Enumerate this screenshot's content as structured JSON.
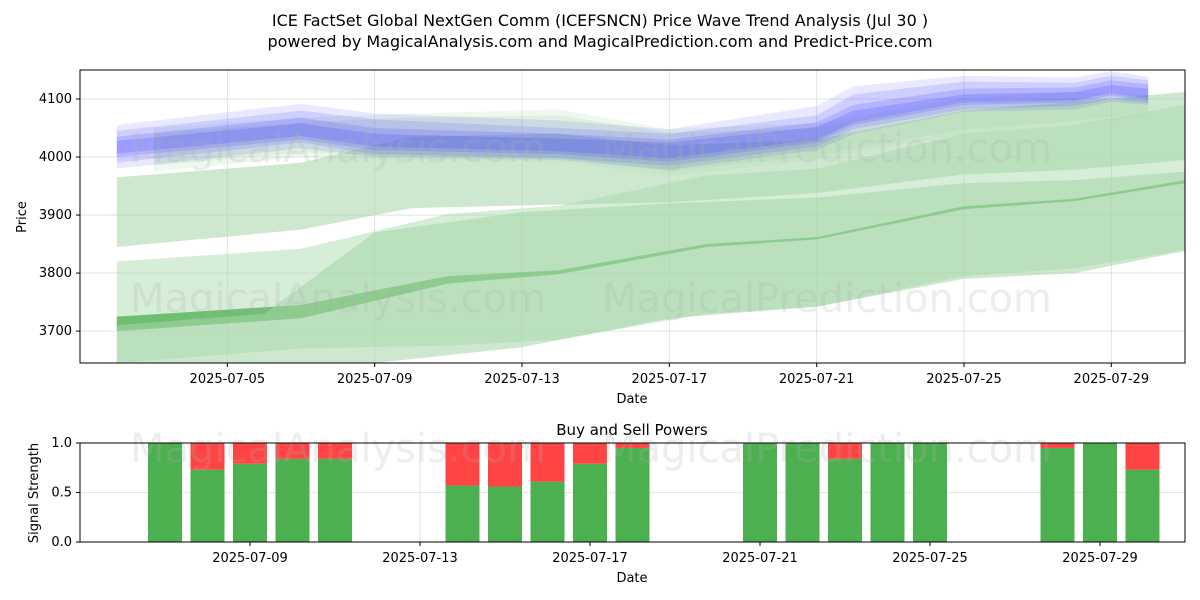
{
  "title": {
    "line1": "ICE FactSet Global NextGen Comm (ICEFSNCN) Price Wave Trend Analysis (Jul 30 )",
    "line2": "powered by MagicalAnalysis.com and MagicalPrediction.com and Predict-Price.com"
  },
  "watermark": {
    "left": "MagicalAnalysis.com",
    "right": "MagicalPrediction.com"
  },
  "colors": {
    "green": "#4caf50",
    "red": "#ff4444",
    "blue": "#4040ff",
    "light_green": "#a5d6a7"
  },
  "chart_data": [
    {
      "type": "area",
      "title": "",
      "xlabel": "Date",
      "ylabel": "Price",
      "xlim": [
        "2025-07-01",
        "2025-07-31"
      ],
      "ylim": [
        3645,
        4150
      ],
      "xticks": [
        "2025-07-05",
        "2025-07-09",
        "2025-07-13",
        "2025-07-17",
        "2025-07-21",
        "2025-07-25",
        "2025-07-29"
      ],
      "yticks": [
        3700,
        3800,
        3900,
        4000,
        4100
      ],
      "grid": true,
      "blue_bands": [
        {
          "x": [
            "2025-07-02",
            "2025-07-07",
            "2025-07-09",
            "2025-07-14",
            "2025-07-17",
            "2025-07-21",
            "2025-07-22",
            "2025-07-25",
            "2025-07-28",
            "2025-07-29",
            "2025-07-30"
          ],
          "upper": [
            4055,
            4092,
            4075,
            4063,
            4048,
            4088,
            4122,
            4140,
            4137,
            4148,
            4138
          ],
          "lower": [
            3980,
            4015,
            4000,
            3995,
            3978,
            4012,
            4040,
            4078,
            4082,
            4095,
            4090
          ]
        },
        {
          "x": [
            "2025-07-02",
            "2025-07-07",
            "2025-07-09",
            "2025-07-14",
            "2025-07-17",
            "2025-07-21",
            "2025-07-22",
            "2025-07-25",
            "2025-07-28",
            "2025-07-29",
            "2025-07-30"
          ],
          "upper": [
            4045,
            4080,
            4065,
            4050,
            4040,
            4072,
            4108,
            4130,
            4128,
            4140,
            4132
          ],
          "lower": [
            3990,
            4025,
            4005,
            3998,
            3985,
            4018,
            4048,
            4082,
            4088,
            4100,
            4093
          ]
        },
        {
          "x": [
            "2025-07-02",
            "2025-07-07",
            "2025-07-09",
            "2025-07-14",
            "2025-07-17",
            "2025-07-21",
            "2025-07-22",
            "2025-07-25",
            "2025-07-28",
            "2025-07-29",
            "2025-07-30"
          ],
          "upper": [
            4035,
            4068,
            4050,
            4040,
            4030,
            4060,
            4090,
            4118,
            4120,
            4132,
            4125
          ],
          "lower": [
            4000,
            4030,
            4012,
            4005,
            3992,
            4025,
            4055,
            4090,
            4094,
            4106,
            4098
          ]
        },
        {
          "x": [
            "2025-07-02",
            "2025-07-07",
            "2025-07-09",
            "2025-07-14",
            "2025-07-17",
            "2025-07-21",
            "2025-07-22",
            "2025-07-25",
            "2025-07-28",
            "2025-07-29",
            "2025-07-30"
          ],
          "upper": [
            4028,
            4058,
            4040,
            4032,
            4025,
            4052,
            4080,
            4108,
            4112,
            4124,
            4118
          ],
          "lower": [
            4006,
            4036,
            4018,
            4010,
            3998,
            4030,
            4060,
            4094,
            4098,
            4110,
            4102
          ]
        }
      ],
      "green_bands": [
        {
          "x": [
            "2025-07-03",
            "2025-07-07",
            "2025-07-10",
            "2025-07-14",
            "2025-07-17",
            "2025-07-21",
            "2025-07-25",
            "2025-07-28",
            "2025-07-30"
          ],
          "upper": [
            4050,
            4068,
            4075,
            4082,
            4048,
            4058,
            4102,
            4112,
            4108
          ],
          "lower": [
            3975,
            4000,
            3995,
            3992,
            3968,
            3995,
            4040,
            4055,
            4070
          ]
        },
        {
          "x": [
            "2025-07-03",
            "2025-07-07",
            "2025-07-10",
            "2025-07-14",
            "2025-07-17",
            "2025-07-21",
            "2025-07-25",
            "2025-07-28",
            "2025-07-30"
          ],
          "upper": [
            4040,
            4060,
            4068,
            4072,
            4042,
            4050,
            4092,
            4102,
            4100
          ],
          "lower": [
            3985,
            4008,
            4002,
            4000,
            3975,
            4002,
            4048,
            4062,
            4078
          ]
        },
        {
          "x": [
            "2025-07-02",
            "2025-07-07",
            "2025-07-10",
            "2025-07-14",
            "2025-07-17",
            "2025-07-21",
            "2025-07-25",
            "2025-07-28",
            "2025-07-31"
          ],
          "upper": [
            3965,
            3990,
            4035,
            4040,
            4020,
            4030,
            4080,
            4095,
            4112
          ],
          "lower": [
            3845,
            3875,
            3912,
            3918,
            3922,
            3938,
            3970,
            3978,
            3995
          ]
        },
        {
          "x": [
            "2025-07-02",
            "2025-07-07",
            "2025-07-11",
            "2025-07-14",
            "2025-07-18",
            "2025-07-21",
            "2025-07-25",
            "2025-07-28",
            "2025-07-31"
          ],
          "upper": [
            3820,
            3842,
            3902,
            3916,
            3968,
            3980,
            4040,
            4055,
            4090
          ],
          "lower": [
            3645,
            3670,
            3675,
            3685,
            3730,
            3742,
            3795,
            3808,
            3840
          ]
        },
        {
          "x": [
            "2025-07-02",
            "2025-07-07",
            "2025-07-11",
            "2025-07-14",
            "2025-07-18",
            "2025-07-21",
            "2025-07-25",
            "2025-07-28",
            "2025-07-31"
          ],
          "upper": [
            3725,
            3745,
            3795,
            3805,
            3850,
            3862,
            3915,
            3928,
            3960
          ],
          "lower": [
            3700,
            3722,
            3782,
            3798,
            3845,
            3858,
            3910,
            3924,
            3955
          ]
        },
        {
          "x": [
            "2025-07-02",
            "2025-07-06",
            "2025-07-09",
            "2025-07-13",
            "2025-07-17",
            "2025-07-21",
            "2025-07-25",
            "2025-07-28",
            "2025-07-31"
          ],
          "upper": [
            3710,
            3730,
            3870,
            3905,
            3920,
            3930,
            3955,
            3960,
            3975
          ],
          "lower": [
            3630,
            3640,
            3645,
            3672,
            3722,
            3742,
            3790,
            3800,
            3838
          ]
        }
      ]
    },
    {
      "type": "bar",
      "title": "Buy and Sell Powers",
      "xlabel": "Date",
      "ylabel": "Signal Strength",
      "xlim": [
        "2025-07-05",
        "2025-07-31"
      ],
      "ylim": [
        0,
        1.0
      ],
      "xticks": [
        "2025-07-09",
        "2025-07-13",
        "2025-07-17",
        "2025-07-21",
        "2025-07-25",
        "2025-07-29"
      ],
      "yticks": [
        "0.0",
        "0.5",
        "1.0"
      ],
      "grid": true,
      "categories": [
        "2025-07-07",
        "2025-07-08",
        "2025-07-09",
        "2025-07-10",
        "2025-07-11",
        "2025-07-14",
        "2025-07-15",
        "2025-07-16",
        "2025-07-17",
        "2025-07-18",
        "2025-07-21",
        "2025-07-22",
        "2025-07-23",
        "2025-07-24",
        "2025-07-25",
        "2025-07-28",
        "2025-07-29",
        "2025-07-30"
      ],
      "series": [
        {
          "values": [
            1.0,
            0.73,
            0.79,
            0.84,
            0.84,
            0.57,
            0.56,
            0.61,
            0.79,
            0.95,
            1.0,
            1.0,
            0.84,
            1.0,
            1.0,
            0.95,
            1.0,
            0.73
          ]
        },
        {
          "values": [
            0.0,
            0.27,
            0.21,
            0.16,
            0.16,
            0.43,
            0.44,
            0.39,
            0.21,
            0.05,
            0.0,
            0.0,
            0.16,
            0.0,
            0.0,
            0.05,
            0.0,
            0.27
          ]
        }
      ]
    }
  ]
}
